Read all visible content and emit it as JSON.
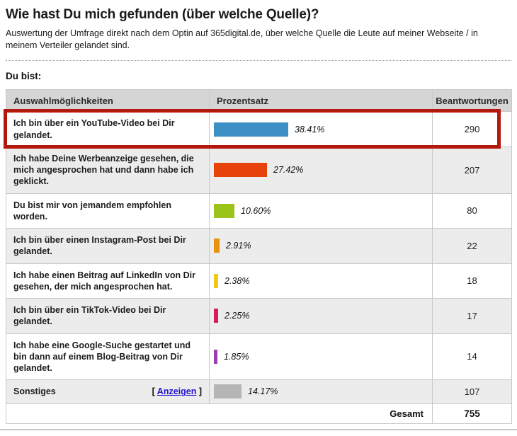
{
  "page": {
    "title": "Wie hast Du mich gefunden (über welche Quelle)?",
    "subtitle": "Auswertung der Umfrage direkt nach dem Optin auf 365digital.de, über welche Quelle die Leute auf meiner Webseite / in meinem Verteiler gelandet sind.",
    "question_label": "Du bist:"
  },
  "table": {
    "headers": [
      "Auswahlmöglichkeiten",
      "Prozentsatz",
      "Beantwortungen"
    ],
    "link_open": "[ ",
    "link_close": " ]",
    "rows": [
      {
        "label": "Ich bin über ein YouTube-Video bei Dir gelandet.",
        "pct": 38.41,
        "pct_label": "38.41%",
        "count": "290",
        "color": "#3e8fc4",
        "highlighted": true
      },
      {
        "label": "Ich habe Deine Werbeanzeige gesehen, die mich angesprochen hat und dann habe ich geklickt.",
        "pct": 27.42,
        "pct_label": "27.42%",
        "count": "207",
        "color": "#e8420b"
      },
      {
        "label": "Du bist mir von jemandem empfohlen worden.",
        "pct": 10.6,
        "pct_label": "10.60%",
        "count": "80",
        "color": "#9cc31a"
      },
      {
        "label": "Ich bin über einen Instagram-Post bei Dir gelandet.",
        "pct": 2.91,
        "pct_label": "2.91%",
        "count": "22",
        "color": "#e8920d"
      },
      {
        "label": "Ich habe einen Beitrag auf LinkedIn von Dir gesehen, der mich angesprochen hat.",
        "pct": 2.38,
        "pct_label": "2.38%",
        "count": "18",
        "color": "#f0ca12"
      },
      {
        "label": "Ich bin über ein TikTok-Video bei Dir gelandet.",
        "pct": 2.25,
        "pct_label": "2.25%",
        "count": "17",
        "color": "#d81a59"
      },
      {
        "label": "Ich habe eine Google-Suche gestartet und bin dann auf einem Blog-Beitrag von Dir gelandet.",
        "pct": 1.85,
        "pct_label": "1.85%",
        "count": "14",
        "color": "#9a3fae"
      },
      {
        "label": "Sonstiges",
        "pct": 14.17,
        "pct_label": "14.17%",
        "count": "107",
        "color": "#b5b5b5",
        "link": "Anzeigen"
      }
    ],
    "footer": {
      "label": "Gesamt",
      "total": "755"
    }
  },
  "highlight_color": "#b3180d",
  "chart_data": {
    "type": "bar",
    "orientation": "horizontal",
    "title": "Wie hast Du mich gefunden (über welche Quelle)?",
    "categories": [
      "Ich bin über ein YouTube-Video bei Dir gelandet.",
      "Ich habe Deine Werbeanzeige gesehen, die mich angesprochen hat und dann habe ich geklickt.",
      "Du bist mir von jemandem empfohlen worden.",
      "Ich bin über einen Instagram-Post bei Dir gelandet.",
      "Ich habe einen Beitrag auf LinkedIn von Dir gesehen, der mich angesprochen hat.",
      "Ich bin über ein TikTok-Video bei Dir gelandet.",
      "Ich habe eine Google-Suche gestartet und bin dann auf einem Blog-Beitrag von Dir gelandet.",
      "Sonstiges"
    ],
    "series": [
      {
        "name": "Prozentsatz",
        "values": [
          38.41,
          27.42,
          10.6,
          2.91,
          2.38,
          2.25,
          1.85,
          14.17
        ]
      },
      {
        "name": "Beantwortungen",
        "values": [
          290,
          207,
          80,
          22,
          18,
          17,
          14,
          107
        ]
      }
    ],
    "total_label": "Gesamt",
    "total_responses": 755,
    "bar_colors": [
      "#3e8fc4",
      "#e8420b",
      "#9cc31a",
      "#e8920d",
      "#f0ca12",
      "#d81a59",
      "#9a3fae",
      "#b5b5b5"
    ],
    "xlim": [
      0,
      100
    ],
    "legend_position": "none",
    "grid": false
  }
}
